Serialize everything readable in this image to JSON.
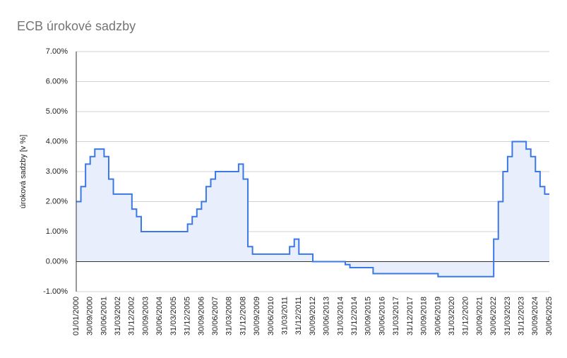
{
  "chart_data": {
    "type": "stepped-area",
    "title": "ECB úrokové sadzby",
    "y_label": "úroková sadzby [v %]",
    "categories": [
      "01/01/2000",
      null,
      null,
      "30/09/2000",
      null,
      null,
      "30/06/2001",
      null,
      null,
      "31/03/2002",
      null,
      null,
      "31/12/2002",
      null,
      null,
      "30/09/2003",
      null,
      null,
      "30/06/2004",
      null,
      null,
      "31/03/2005",
      null,
      null,
      "31/12/2005",
      null,
      null,
      "30/09/2006",
      null,
      null,
      "30/06/2007",
      null,
      null,
      "31/03/2008",
      null,
      null,
      "31/12/2008",
      null,
      null,
      "30/09/2009",
      null,
      null,
      "30/06/2010",
      null,
      null,
      "31/03/2011",
      null,
      null,
      "31/12/2011",
      null,
      null,
      "30/09/2012",
      null,
      null,
      "30/06/2013",
      null,
      null,
      "31/03/2014",
      null,
      null,
      "31/12/2014",
      null,
      null,
      "30/09/2015",
      null,
      null,
      "30/06/2016",
      null,
      null,
      "31/03/2017",
      null,
      null,
      "31/12/2017",
      null,
      null,
      "30/09/2018",
      null,
      null,
      "30/06/2019",
      null,
      null,
      "31/03/2020",
      null,
      null,
      "31/12/2020",
      null,
      null,
      "30/09/2021",
      null,
      null,
      "30/06/2022",
      null,
      null,
      "31/03/2023",
      null,
      null,
      "31/12/2023",
      null,
      null,
      "30/09/2024",
      null,
      null,
      "30/06/2025"
    ],
    "values": [
      2.0,
      2.5,
      3.25,
      3.5,
      3.75,
      3.75,
      3.5,
      2.75,
      2.25,
      2.25,
      2.25,
      2.25,
      1.75,
      1.5,
      1.0,
      1.0,
      1.0,
      1.0,
      1.0,
      1.0,
      1.0,
      1.0,
      1.0,
      1.0,
      1.25,
      1.5,
      1.75,
      2.0,
      2.5,
      2.75,
      3.0,
      3.0,
      3.0,
      3.0,
      3.0,
      3.25,
      2.75,
      0.5,
      0.25,
      0.25,
      0.25,
      0.25,
      0.25,
      0.25,
      0.25,
      0.25,
      0.5,
      0.75,
      0.25,
      0.25,
      0.25,
      0,
      0,
      0,
      0,
      0,
      0,
      0,
      -0.1,
      -0.2,
      -0.2,
      -0.2,
      -0.2,
      -0.2,
      -0.4,
      -0.4,
      -0.4,
      -0.4,
      -0.4,
      -0.4,
      -0.4,
      -0.4,
      -0.4,
      -0.4,
      -0.4,
      -0.4,
      -0.4,
      -0.4,
      -0.5,
      -0.5,
      -0.5,
      -0.5,
      -0.5,
      -0.5,
      -0.5,
      -0.5,
      -0.5,
      -0.5,
      -0.5,
      -0.5,
      0.75,
      2.0,
      3.0,
      3.5,
      4.0,
      4.0,
      4.0,
      3.75,
      3.5,
      3.0,
      2.5,
      2.25,
      2.25
    ],
    "color": "#3b78e7",
    "fill": "#e8eefb",
    "ylim": [
      -1,
      7
    ],
    "yticks": [
      {
        "value": -1,
        "label": "-1.00%"
      },
      {
        "value": 0,
        "label": "0.00%"
      },
      {
        "value": 1,
        "label": "1.00%"
      },
      {
        "value": 2,
        "label": "2.00%"
      },
      {
        "value": 3,
        "label": "3.00%"
      },
      {
        "value": 4,
        "label": "4.00%"
      },
      {
        "value": 5,
        "label": "5.00%"
      },
      {
        "value": 6,
        "label": "6.00%"
      },
      {
        "value": 7,
        "label": "7.00%"
      }
    ],
    "grid": true
  }
}
